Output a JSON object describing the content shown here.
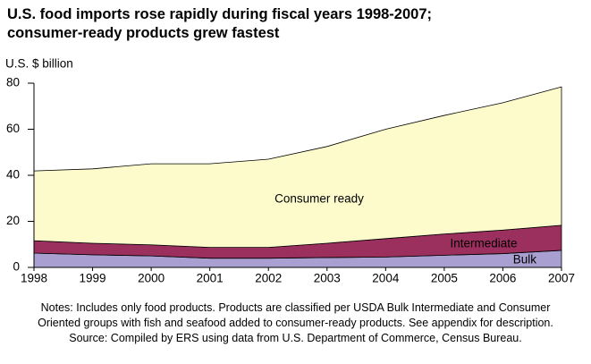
{
  "chart_data": {
    "type": "stacked-area",
    "title": "U.S. food imports rose rapidly during fiscal years 1998-2007; consumer-ready products grew fastest",
    "y_label": "U.S. $ billion",
    "x": [
      1998,
      1999,
      2000,
      2001,
      2002,
      2003,
      2004,
      2005,
      2006,
      2007
    ],
    "xlim": [
      1998,
      2007
    ],
    "xticks": [
      1998,
      1999,
      2000,
      2001,
      2002,
      2003,
      2004,
      2005,
      2006,
      2007
    ],
    "ylim": [
      0,
      80
    ],
    "yticks": [
      0,
      20,
      40,
      60,
      80
    ],
    "grid": false,
    "series": [
      {
        "name": "Bulk",
        "color": "#a99fd0",
        "values": [
          6.2,
          5.5,
          5.0,
          4.0,
          4.0,
          4.3,
          4.5,
          5.3,
          6.0,
          7.4
        ]
      },
      {
        "name": "Intermediate",
        "color": "#9b2f5e",
        "values": [
          5.4,
          5.0,
          4.8,
          4.7,
          4.7,
          6.2,
          8.0,
          9.2,
          10.2,
          10.9
        ]
      },
      {
        "name": "Consumer ready",
        "color": "#fdfbcc",
        "values": [
          30.3,
          32.3,
          35.2,
          36.3,
          38.3,
          42.0,
          47.5,
          51.5,
          55.3,
          60.1
        ]
      }
    ],
    "notes": "Notes: Includes only food products. Products are classified per USDA Bulk Intermediate and Consumer Oriented groups with fish and seafood added to consumer-ready products. See appendix for description.",
    "source": "Source: Compiled by ERS using data from U.S. Department of Commerce, Census Bureau."
  }
}
